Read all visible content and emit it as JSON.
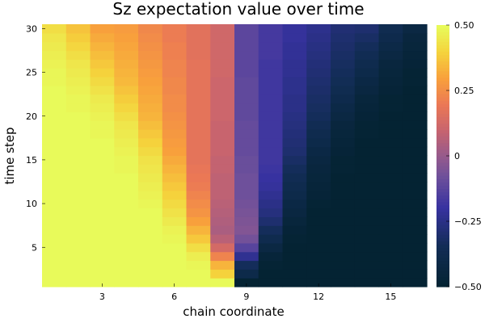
{
  "chart_data": {
    "type": "heatmap",
    "title": "Sz expectation value over time",
    "xlabel": "chain coordinate",
    "ylabel": "time step",
    "x_ticks": [
      3,
      6,
      9,
      12,
      15
    ],
    "y_ticks": [
      5,
      10,
      15,
      20,
      25,
      30
    ],
    "x_range": [
      0.5,
      16.5
    ],
    "y_range": [
      0.5,
      30.5
    ],
    "n_sites": 16,
    "n_steps": 30,
    "colorbar": {
      "range": [
        -0.5,
        0.5
      ],
      "ticks": [
        -0.5,
        -0.25,
        0,
        0.25,
        0.5
      ],
      "tick_labels": [
        "−0.50",
        "−0.25",
        "0",
        "0.25",
        "0.50"
      ],
      "colormap": "thermal"
    },
    "values": [
      [
        0.5,
        0.5,
        0.5,
        0.5,
        0.5,
        0.5,
        0.5,
        0.5,
        -0.5,
        -0.5,
        -0.5,
        -0.5,
        -0.5,
        -0.5,
        -0.5,
        -0.5
      ],
      [
        0.5,
        0.5,
        0.5,
        0.5,
        0.5,
        0.5,
        0.5,
        0.4,
        -0.4,
        -0.5,
        -0.5,
        -0.5,
        -0.5,
        -0.5,
        -0.5,
        -0.5
      ],
      [
        0.5,
        0.5,
        0.5,
        0.5,
        0.5,
        0.5,
        0.49,
        0.34,
        -0.34,
        -0.49,
        -0.5,
        -0.5,
        -0.5,
        -0.5,
        -0.5,
        -0.5
      ],
      [
        0.5,
        0.5,
        0.5,
        0.5,
        0.5,
        0.5,
        0.47,
        0.23,
        -0.23,
        -0.47,
        -0.5,
        -0.5,
        -0.5,
        -0.5,
        -0.5,
        -0.5
      ],
      [
        0.5,
        0.5,
        0.5,
        0.5,
        0.5,
        0.5,
        0.43,
        0.13,
        -0.13,
        -0.43,
        -0.5,
        -0.5,
        -0.5,
        -0.5,
        -0.5,
        -0.5
      ],
      [
        0.5,
        0.5,
        0.5,
        0.5,
        0.5,
        0.49,
        0.38,
        0.07,
        -0.07,
        -0.38,
        -0.49,
        -0.5,
        -0.5,
        -0.5,
        -0.5,
        -0.5
      ],
      [
        0.5,
        0.5,
        0.5,
        0.5,
        0.5,
        0.48,
        0.34,
        0.04,
        -0.04,
        -0.34,
        -0.48,
        -0.5,
        -0.5,
        -0.5,
        -0.5,
        -0.5
      ],
      [
        0.5,
        0.5,
        0.5,
        0.5,
        0.5,
        0.46,
        0.3,
        0.05,
        -0.05,
        -0.3,
        -0.46,
        -0.5,
        -0.5,
        -0.5,
        -0.5,
        -0.5
      ],
      [
        0.5,
        0.5,
        0.5,
        0.5,
        0.5,
        0.44,
        0.27,
        0.06,
        -0.06,
        -0.27,
        -0.44,
        -0.5,
        -0.5,
        -0.5,
        -0.5,
        -0.5
      ],
      [
        0.5,
        0.5,
        0.5,
        0.5,
        0.49,
        0.42,
        0.25,
        0.07,
        -0.07,
        -0.25,
        -0.42,
        -0.49,
        -0.5,
        -0.5,
        -0.5,
        -0.5
      ],
      [
        0.5,
        0.5,
        0.5,
        0.5,
        0.48,
        0.4,
        0.23,
        0.08,
        -0.08,
        -0.23,
        -0.4,
        -0.48,
        -0.5,
        -0.5,
        -0.5,
        -0.5
      ],
      [
        0.5,
        0.5,
        0.5,
        0.5,
        0.47,
        0.38,
        0.21,
        0.08,
        -0.08,
        -0.21,
        -0.38,
        -0.47,
        -0.5,
        -0.5,
        -0.5,
        -0.5
      ],
      [
        0.5,
        0.5,
        0.5,
        0.5,
        0.46,
        0.36,
        0.2,
        0.08,
        -0.08,
        -0.2,
        -0.36,
        -0.46,
        -0.5,
        -0.5,
        -0.5,
        -0.5
      ],
      [
        0.5,
        0.5,
        0.5,
        0.49,
        0.45,
        0.34,
        0.19,
        0.09,
        -0.09,
        -0.19,
        -0.34,
        -0.45,
        -0.49,
        -0.5,
        -0.5,
        -0.5
      ],
      [
        0.5,
        0.5,
        0.5,
        0.49,
        0.44,
        0.32,
        0.18,
        0.09,
        -0.09,
        -0.18,
        -0.32,
        -0.44,
        -0.49,
        -0.5,
        -0.5,
        -0.5
      ],
      [
        0.5,
        0.5,
        0.5,
        0.48,
        0.42,
        0.3,
        0.18,
        0.1,
        -0.1,
        -0.18,
        -0.3,
        -0.42,
        -0.48,
        -0.5,
        -0.5,
        -0.5
      ],
      [
        0.5,
        0.5,
        0.5,
        0.47,
        0.4,
        0.29,
        0.18,
        0.1,
        -0.1,
        -0.18,
        -0.29,
        -0.4,
        -0.47,
        -0.5,
        -0.5,
        -0.5
      ],
      [
        0.5,
        0.5,
        0.49,
        0.46,
        0.38,
        0.28,
        0.18,
        0.1,
        -0.1,
        -0.18,
        -0.28,
        -0.38,
        -0.46,
        -0.49,
        -0.5,
        -0.5
      ],
      [
        0.5,
        0.5,
        0.49,
        0.45,
        0.36,
        0.27,
        0.18,
        0.1,
        -0.1,
        -0.18,
        -0.27,
        -0.36,
        -0.45,
        -0.49,
        -0.5,
        -0.5
      ],
      [
        0.5,
        0.5,
        0.48,
        0.43,
        0.34,
        0.26,
        0.18,
        0.11,
        -0.11,
        -0.18,
        -0.26,
        -0.34,
        -0.43,
        -0.48,
        -0.5,
        -0.5
      ],
      [
        0.5,
        0.49,
        0.47,
        0.41,
        0.33,
        0.25,
        0.18,
        0.11,
        -0.11,
        -0.18,
        -0.25,
        -0.33,
        -0.41,
        -0.47,
        -0.49,
        -0.5
      ],
      [
        0.5,
        0.49,
        0.46,
        0.39,
        0.32,
        0.25,
        0.18,
        0.11,
        -0.11,
        -0.18,
        -0.25,
        -0.32,
        -0.39,
        -0.46,
        -0.49,
        -0.5
      ],
      [
        0.5,
        0.48,
        0.44,
        0.37,
        0.31,
        0.24,
        0.18,
        0.11,
        -0.11,
        -0.18,
        -0.24,
        -0.31,
        -0.37,
        -0.44,
        -0.48,
        -0.5
      ],
      [
        0.49,
        0.47,
        0.42,
        0.35,
        0.3,
        0.24,
        0.18,
        0.11,
        -0.11,
        -0.18,
        -0.24,
        -0.3,
        -0.35,
        -0.42,
        -0.47,
        -0.49
      ],
      [
        0.49,
        0.46,
        0.4,
        0.34,
        0.29,
        0.23,
        0.18,
        0.12,
        -0.12,
        -0.18,
        -0.23,
        -0.29,
        -0.34,
        -0.4,
        -0.46,
        -0.49
      ],
      [
        0.48,
        0.45,
        0.38,
        0.33,
        0.28,
        0.23,
        0.18,
        0.12,
        -0.12,
        -0.18,
        -0.23,
        -0.28,
        -0.33,
        -0.38,
        -0.45,
        -0.48
      ],
      [
        0.47,
        0.43,
        0.36,
        0.32,
        0.27,
        0.22,
        0.17,
        0.12,
        -0.12,
        -0.17,
        -0.22,
        -0.27,
        -0.32,
        -0.36,
        -0.43,
        -0.47
      ],
      [
        0.46,
        0.41,
        0.34,
        0.31,
        0.26,
        0.22,
        0.17,
        0.12,
        -0.12,
        -0.17,
        -0.22,
        -0.26,
        -0.31,
        -0.34,
        -0.41,
        -0.46
      ],
      [
        0.45,
        0.39,
        0.32,
        0.3,
        0.25,
        0.21,
        0.17,
        0.12,
        -0.12,
        -0.17,
        -0.21,
        -0.25,
        -0.3,
        -0.32,
        -0.39,
        -0.45
      ],
      [
        0.43,
        0.37,
        0.3,
        0.29,
        0.24,
        0.21,
        0.17,
        0.12,
        -0.12,
        -0.17,
        -0.21,
        -0.24,
        -0.29,
        -0.3,
        -0.37,
        -0.43
      ]
    ]
  }
}
